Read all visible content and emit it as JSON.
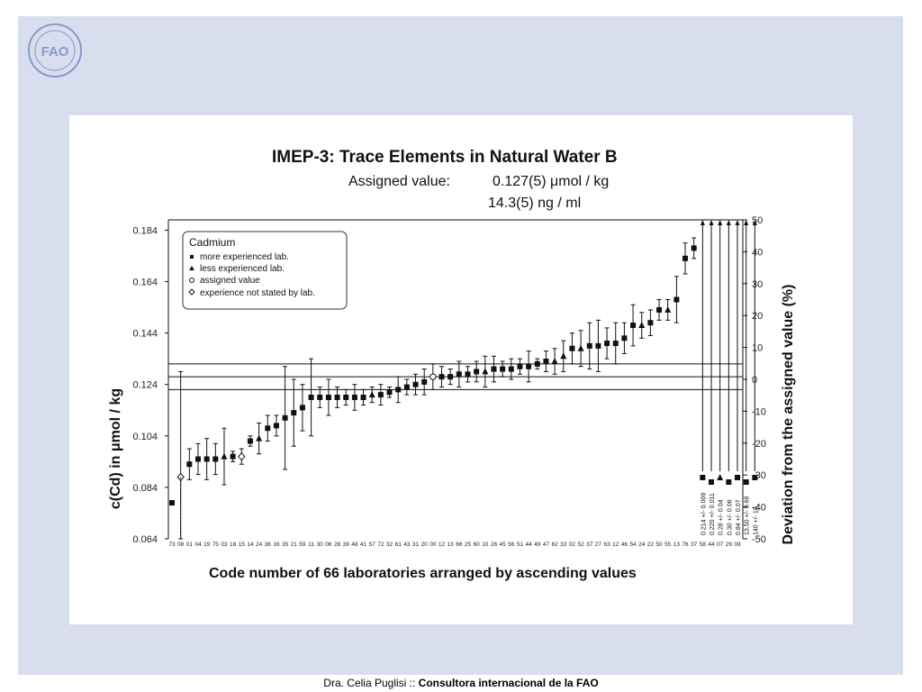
{
  "footer": {
    "author": "Dra. Celia Puglisi",
    "separator": " :: ",
    "role": "Consultora internacional de la FAO"
  },
  "logo": {
    "icon": "fao-logo-icon",
    "letters": "FAO"
  },
  "colors": {
    "slide_bg": "#d9deef",
    "figure_bg": "#ffffff",
    "ink": "#111111"
  },
  "chart_data": {
    "type": "scatter",
    "title": "IMEP-3: Trace Elements in Natural Water B",
    "assigned_label": "Assigned value:",
    "assigned_value_1": "0.127(5) μmol / kg",
    "assigned_value_2": "14.3(5) ng / ml",
    "xlabel": "Code number of 66 laboratories arranged by ascending values",
    "ylabel": "c(Cd) in μmol / kg",
    "ylabel_right": "Deviation from the assigned value (%)",
    "ylim": [
      0.064,
      0.188
    ],
    "yticks": [
      "0.184",
      "0.164",
      "0.144",
      "0.124",
      "0.104",
      "0.084",
      "0.064"
    ],
    "ylim_right": [
      -50,
      50
    ],
    "yticks_right": [
      "50",
      "40",
      "30",
      "20",
      "10",
      "0",
      "-10",
      "-20",
      "-30",
      "-40",
      "-50"
    ],
    "assigned_value": 0.127,
    "assigned_band": [
      0.122,
      0.132
    ],
    "legend": {
      "title": "Cadmium",
      "placement": "top-left",
      "entries": [
        {
          "marker": "square",
          "label": "more experienced lab."
        },
        {
          "marker": "triangle",
          "label": "less experienced lab."
        },
        {
          "marker": "circle",
          "label": "assigned value"
        },
        {
          "marker": "diamond",
          "label": "experience not stated by lab."
        }
      ]
    },
    "lab_codes": [
      "73",
      "08",
      "01",
      "04",
      "19",
      "75",
      "03",
      "18",
      "15",
      "14",
      "24",
      "36",
      "16",
      "35",
      "21",
      "59",
      "11",
      "30",
      "06",
      "28",
      "39",
      "48",
      "41",
      "57",
      "72",
      "32",
      "61",
      "43",
      "31",
      "20",
      "00",
      "12",
      "13",
      "66",
      "25",
      "60",
      "10",
      "26",
      "45",
      "56",
      "51",
      "44",
      "49",
      "47",
      "62",
      "33",
      "02",
      "52",
      "37",
      "27",
      "63",
      "12",
      "46",
      "54",
      "24",
      "22",
      "50",
      "55",
      "13",
      "76",
      "37",
      "58",
      "44",
      "07",
      "29",
      "09"
    ],
    "points": [
      {
        "lab": "73",
        "value": 0.078,
        "err": 0,
        "m": "s"
      },
      {
        "lab": "08",
        "value": 0.088,
        "err": 0.041,
        "m": "d"
      },
      {
        "lab": "01",
        "value": 0.093,
        "err": 0.006,
        "m": "s"
      },
      {
        "lab": "04",
        "value": 0.095,
        "err": 0.006,
        "m": "s"
      },
      {
        "lab": "19",
        "value": 0.095,
        "err": 0.008,
        "m": "s"
      },
      {
        "lab": "75",
        "value": 0.095,
        "err": 0.006,
        "m": "s"
      },
      {
        "lab": "03",
        "value": 0.096,
        "err": 0.011,
        "m": "t"
      },
      {
        "lab": "18",
        "value": 0.096,
        "err": 0.002,
        "m": "s"
      },
      {
        "lab": "15",
        "value": 0.096,
        "err": 0.003,
        "m": "d"
      },
      {
        "lab": "14",
        "value": 0.102,
        "err": 0.002,
        "m": "s"
      },
      {
        "lab": "24",
        "value": 0.103,
        "err": 0.006,
        "m": "t"
      },
      {
        "lab": "36",
        "value": 0.107,
        "err": 0.005,
        "m": "s"
      },
      {
        "lab": "16",
        "value": 0.108,
        "err": 0.004,
        "m": "s"
      },
      {
        "lab": "35",
        "value": 0.111,
        "err": 0.02,
        "m": "s"
      },
      {
        "lab": "21",
        "value": 0.113,
        "err": 0.013,
        "m": "s"
      },
      {
        "lab": "59",
        "value": 0.115,
        "err": 0.009,
        "m": "s"
      },
      {
        "lab": "11",
        "value": 0.119,
        "err": 0.015,
        "m": "s"
      },
      {
        "lab": "30",
        "value": 0.119,
        "err": 0.004,
        "m": "s"
      },
      {
        "lab": "06",
        "value": 0.119,
        "err": 0.007,
        "m": "s"
      },
      {
        "lab": "28",
        "value": 0.119,
        "err": 0.004,
        "m": "s"
      },
      {
        "lab": "39",
        "value": 0.119,
        "err": 0.003,
        "m": "s"
      },
      {
        "lab": "48",
        "value": 0.119,
        "err": 0.005,
        "m": "s"
      },
      {
        "lab": "41",
        "value": 0.119,
        "err": 0.003,
        "m": "s"
      },
      {
        "lab": "57",
        "value": 0.12,
        "err": 0.003,
        "m": "t"
      },
      {
        "lab": "72",
        "value": 0.12,
        "err": 0.004,
        "m": "s"
      },
      {
        "lab": "32",
        "value": 0.121,
        "err": 0.002,
        "m": "s"
      },
      {
        "lab": "61",
        "value": 0.122,
        "err": 0.005,
        "m": "s"
      },
      {
        "lab": "43",
        "value": 0.123,
        "err": 0.003,
        "m": "s"
      },
      {
        "lab": "31",
        "value": 0.124,
        "err": 0.004,
        "m": "s"
      },
      {
        "lab": "20",
        "value": 0.125,
        "err": 0.005,
        "m": "s"
      },
      {
        "lab": "00",
        "value": 0.127,
        "err": 0.005,
        "m": "c"
      },
      {
        "lab": "12",
        "value": 0.127,
        "err": 0.004,
        "m": "s"
      },
      {
        "lab": "13",
        "value": 0.127,
        "err": 0.003,
        "m": "s"
      },
      {
        "lab": "66",
        "value": 0.128,
        "err": 0.005,
        "m": "s"
      },
      {
        "lab": "25",
        "value": 0.128,
        "err": 0.003,
        "m": "s"
      },
      {
        "lab": "60",
        "value": 0.129,
        "err": 0.004,
        "m": "s"
      },
      {
        "lab": "10",
        "value": 0.129,
        "err": 0.006,
        "m": "t"
      },
      {
        "lab": "26",
        "value": 0.13,
        "err": 0.005,
        "m": "s"
      },
      {
        "lab": "45",
        "value": 0.13,
        "err": 0.003,
        "m": "s"
      },
      {
        "lab": "56",
        "value": 0.13,
        "err": 0.004,
        "m": "s"
      },
      {
        "lab": "51",
        "value": 0.131,
        "err": 0.003,
        "m": "s"
      },
      {
        "lab": "44",
        "value": 0.131,
        "err": 0.006,
        "m": "s"
      },
      {
        "lab": "49",
        "value": 0.132,
        "err": 0.002,
        "m": "s"
      },
      {
        "lab": "47",
        "value": 0.133,
        "err": 0.004,
        "m": "s"
      },
      {
        "lab": "62",
        "value": 0.133,
        "err": 0.005,
        "m": "t"
      },
      {
        "lab": "33",
        "value": 0.135,
        "err": 0.006,
        "m": "t"
      },
      {
        "lab": "02",
        "value": 0.138,
        "err": 0.006,
        "m": "s"
      },
      {
        "lab": "52",
        "value": 0.138,
        "err": 0.007,
        "m": "t"
      },
      {
        "lab": "37",
        "value": 0.139,
        "err": 0.009,
        "m": "s"
      },
      {
        "lab": "27",
        "value": 0.139,
        "err": 0.01,
        "m": "s"
      },
      {
        "lab": "63",
        "value": 0.14,
        "err": 0.006,
        "m": "s"
      },
      {
        "lab": "12",
        "value": 0.14,
        "err": 0.008,
        "m": "s"
      },
      {
        "lab": "46",
        "value": 0.142,
        "err": 0.006,
        "m": "s"
      },
      {
        "lab": "54",
        "value": 0.147,
        "err": 0.008,
        "m": "s"
      },
      {
        "lab": "24",
        "value": 0.147,
        "err": 0.005,
        "m": "t"
      },
      {
        "lab": "22",
        "value": 0.148,
        "err": 0.005,
        "m": "s"
      },
      {
        "lab": "50",
        "value": 0.153,
        "err": 0.004,
        "m": "s"
      },
      {
        "lab": "55",
        "value": 0.153,
        "err": 0.004,
        "m": "t"
      },
      {
        "lab": "13",
        "value": 0.157,
        "err": 0.009,
        "m": "s"
      },
      {
        "lab": "76",
        "value": 0.173,
        "err": 0.006,
        "m": "s"
      },
      {
        "lab": "37",
        "value": 0.177,
        "err": 0.004,
        "m": "s"
      }
    ],
    "off_scale": [
      {
        "lab": "37",
        "value": 0.214,
        "err": 0.009,
        "label": "0.214 +/- 0.009",
        "m": "s"
      },
      {
        "lab": "58",
        "value": 0.22,
        "err": 0.011,
        "label": "0.220 +/- 0.011",
        "m": "s"
      },
      {
        "lab": "44",
        "value": 0.28,
        "err": 0.04,
        "label": "0.28 +/- 0.04",
        "m": "t"
      },
      {
        "lab": "07",
        "value": 0.3,
        "err": 0.06,
        "label": "0.30 +/- 0.06",
        "m": "s"
      },
      {
        "lab": "29",
        "value": 0.84,
        "err": 0.07,
        "label": "0.84 +/- 0.07",
        "m": "s"
      },
      {
        "lab": "29b",
        "value": 13.5,
        "err": 0.68,
        "label": "13.50 +/- 0.68",
        "m": "s"
      },
      {
        "lab": "09",
        "value": 140,
        "err": 10,
        "label": "140 +/- 10",
        "m": "s"
      }
    ]
  }
}
